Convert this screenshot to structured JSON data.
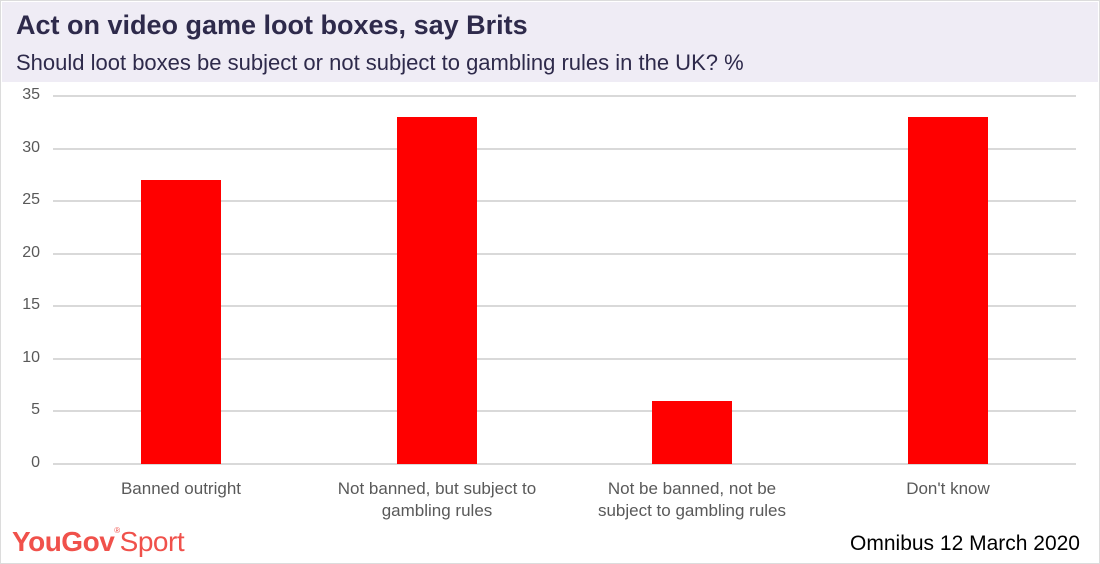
{
  "header": {
    "title": "Act on video game loot boxes, say Brits",
    "subtitle": "Should loot boxes be subject or not subject to gambling rules in the UK? %"
  },
  "footer": {
    "brand_bold": "YouGov",
    "brand_light": "Sport",
    "source": "Omnibus 12 March 2020"
  },
  "colors": {
    "bar": "#ff0000",
    "header_bg": "#efecf5",
    "title": "#2e2a4b",
    "brand": "#f0514b"
  },
  "chart_data": {
    "type": "bar",
    "title": "Act on video game loot boxes, say Brits",
    "subtitle": "Should loot boxes be subject or not subject to gambling rules in the UK? %",
    "categories": [
      "Banned outright",
      "Not banned, but subject to gambling rules",
      "Not be banned, not be subject to gambling rules",
      "Don't know"
    ],
    "category_lines": [
      [
        "Banned outright"
      ],
      [
        "Not banned, but subject to",
        "gambling rules"
      ],
      [
        "Not be banned, not be",
        "subject to gambling rules"
      ],
      [
        "Don't know"
      ]
    ],
    "values": [
      27,
      33,
      6,
      33
    ],
    "xlabel": "",
    "ylabel": "%",
    "ylim": [
      0,
      35
    ],
    "yticks": [
      0,
      5,
      10,
      15,
      20,
      25,
      30,
      35
    ],
    "grid": true,
    "legend": "none",
    "source": "Omnibus 12 March 2020"
  }
}
